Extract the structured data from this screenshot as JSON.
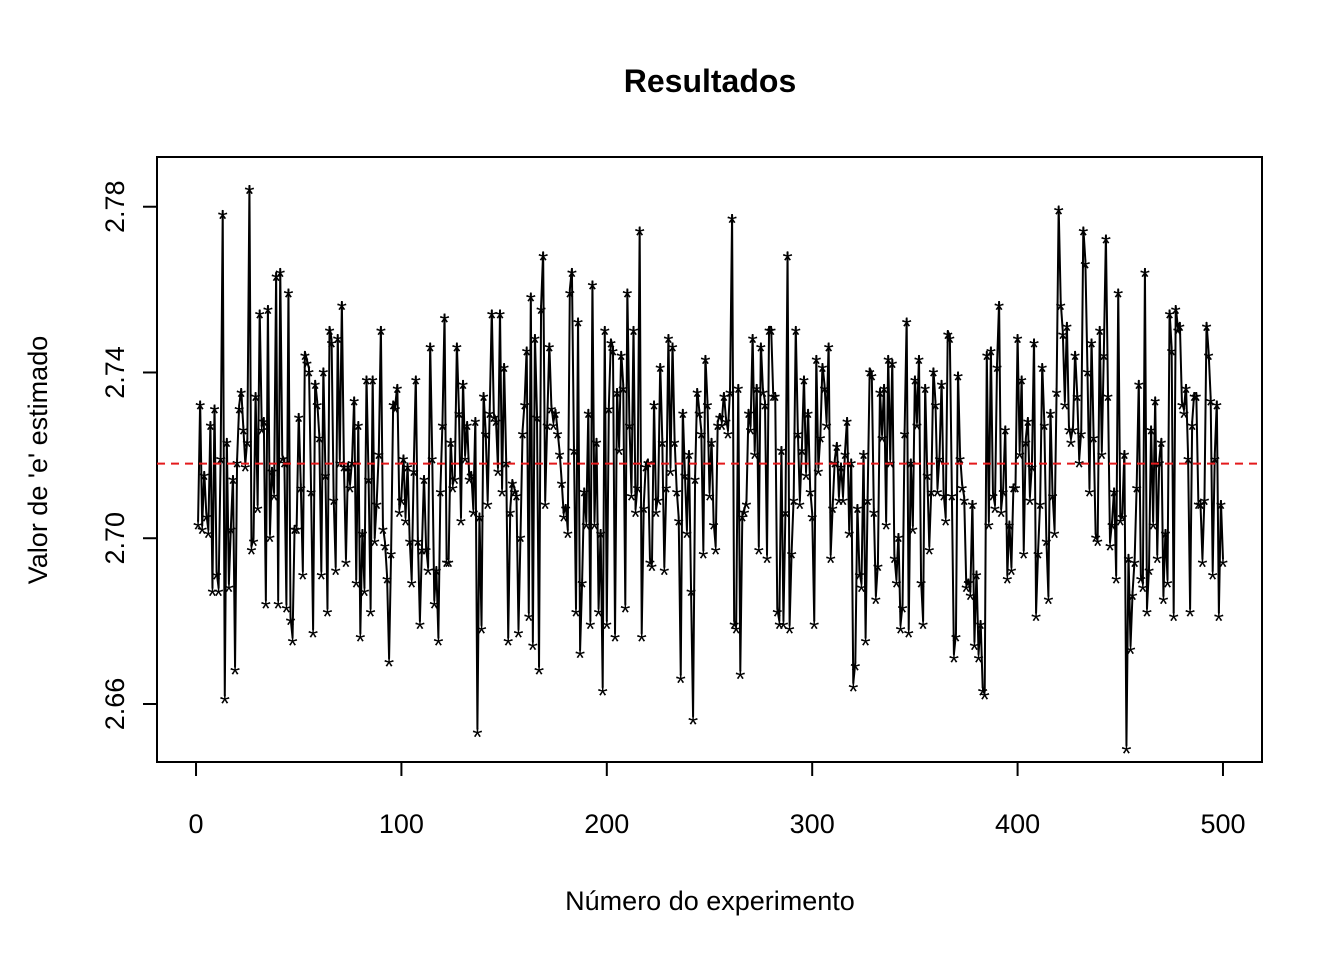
{
  "chart_data": {
    "type": "line",
    "title": "Resultados",
    "x_label": "Número do experimento",
    "y_label": "Valor de 'e' estimado",
    "marker": "*",
    "color": "#000000",
    "hline": 2.718,
    "hline_color": "#e41a1c",
    "xlim": [
      -19,
      519
    ],
    "ylim": [
      2.646,
      2.792
    ],
    "xticks": [
      0,
      100,
      200,
      300,
      400,
      500
    ],
    "yticks": [
      2.66,
      {
        "value": 2.7,
        "label": "2.70"
      },
      2.74,
      2.78
    ],
    "x": [
      1,
      2,
      3,
      4,
      5,
      6,
      7,
      8,
      9,
      10,
      11,
      12,
      13,
      14,
      15,
      16,
      17,
      18,
      19,
      20,
      21,
      22,
      23,
      24,
      25,
      26,
      27,
      28,
      29,
      30,
      31,
      32,
      33,
      34,
      35,
      36,
      37,
      38,
      39,
      40,
      41,
      42,
      43,
      44,
      45,
      46,
      47,
      48,
      49,
      50,
      51,
      52,
      53,
      54,
      55,
      56,
      57,
      58,
      59,
      60,
      61,
      62,
      63,
      64,
      65,
      66,
      67,
      68,
      69,
      70,
      71,
      72,
      73,
      74,
      75,
      76,
      77,
      78,
      79,
      80,
      81,
      82,
      83,
      84,
      85,
      86,
      87,
      88,
      89,
      90,
      91,
      92,
      93,
      94,
      95,
      96,
      97,
      98,
      99,
      100,
      101,
      102,
      103,
      104,
      105,
      106,
      107,
      108,
      109,
      110,
      111,
      112,
      113,
      114,
      115,
      116,
      117,
      118,
      119,
      120,
      121,
      122,
      123,
      124,
      125,
      126,
      127,
      128,
      129,
      130,
      131,
      132,
      133,
      134,
      135,
      136,
      137,
      138,
      139,
      140,
      141,
      142,
      143,
      144,
      145,
      146,
      147,
      148,
      149,
      150,
      151,
      152,
      153,
      154,
      155,
      156,
      157,
      158,
      159,
      160,
      161,
      162,
      163,
      164,
      165,
      166,
      167,
      168,
      169,
      170,
      171,
      172,
      173,
      174,
      175,
      176,
      177,
      178,
      179,
      180,
      181,
      182,
      183,
      184,
      185,
      186,
      187,
      188,
      189,
      190,
      191,
      192,
      193,
      194,
      195,
      196,
      197,
      198,
      199,
      200,
      201,
      202,
      203,
      204,
      205,
      206,
      207,
      208,
      209,
      210,
      211,
      212,
      213,
      214,
      215,
      216,
      217,
      218,
      219,
      220,
      221,
      222,
      223,
      224,
      225,
      226,
      227,
      228,
      229,
      230,
      231,
      232,
      233,
      234,
      235,
      236,
      237,
      238,
      239,
      240,
      241,
      242,
      243,
      244,
      245,
      246,
      247,
      248,
      249,
      250,
      251,
      252,
      253,
      254,
      255,
      256,
      257,
      258,
      259,
      260,
      261,
      262,
      263,
      264,
      265,
      266,
      267,
      268,
      269,
      270,
      271,
      272,
      273,
      274,
      275,
      276,
      277,
      278,
      279,
      280,
      281,
      282,
      283,
      284,
      285,
      286,
      287,
      288,
      289,
      290,
      291,
      292,
      293,
      294,
      295,
      296,
      297,
      298,
      299,
      300,
      301,
      302,
      303,
      304,
      305,
      306,
      307,
      308,
      309,
      310,
      311,
      312,
      313,
      314,
      315,
      316,
      317,
      318,
      319,
      320,
      321,
      322,
      323,
      324,
      325,
      326,
      327,
      328,
      329,
      330,
      331,
      332,
      333,
      334,
      335,
      336,
      337,
      338,
      339,
      340,
      341,
      342,
      343,
      344,
      345,
      346,
      347,
      348,
      349,
      350,
      351,
      352,
      353,
      354,
      355,
      356,
      357,
      358,
      359,
      360,
      361,
      362,
      363,
      364,
      365,
      366,
      367,
      368,
      369,
      370,
      371,
      372,
      373,
      374,
      375,
      376,
      377,
      378,
      379,
      380,
      381,
      382,
      383,
      384,
      385,
      386,
      387,
      388,
      389,
      390,
      391,
      392,
      393,
      394,
      395,
      396,
      397,
      398,
      399,
      400,
      401,
      402,
      403,
      404,
      405,
      406,
      407,
      408,
      409,
      410,
      411,
      412,
      413,
      414,
      415,
      416,
      417,
      418,
      419,
      420,
      421,
      422,
      423,
      424,
      425,
      426,
      427,
      428,
      429,
      430,
      431,
      432,
      433,
      434,
      435,
      436,
      437,
      438,
      439,
      440,
      441,
      442,
      443,
      444,
      445,
      446,
      447,
      448,
      449,
      450,
      451,
      452,
      453,
      454,
      455,
      456,
      457,
      458,
      459,
      460,
      461,
      462,
      463,
      464,
      465,
      466,
      467,
      468,
      469,
      470,
      471,
      472,
      473,
      474,
      475,
      476,
      477,
      478,
      479,
      480,
      481,
      482,
      483,
      484,
      485,
      486,
      487,
      488,
      489,
      490,
      491,
      492,
      493,
      494,
      495,
      496,
      497,
      498,
      499,
      500
    ],
    "values": [
      2.704,
      2.733,
      2.703,
      2.716,
      2.706,
      2.702,
      2.728,
      2.688,
      2.732,
      2.692,
      2.688,
      2.72,
      2.779,
      2.662,
      2.724,
      2.689,
      2.703,
      2.715,
      2.669,
      2.719,
      2.732,
      2.736,
      2.727,
      2.718,
      2.724,
      2.785,
      2.698,
      2.7,
      2.735,
      2.708,
      2.755,
      2.727,
      2.729,
      2.685,
      2.756,
      2.701,
      2.717,
      2.711,
      2.764,
      2.685,
      2.765,
      2.72,
      2.719,
      2.684,
      2.76,
      2.681,
      2.676,
      2.703,
      2.703,
      2.73,
      2.713,
      2.692,
      2.745,
      2.743,
      2.741,
      2.712,
      2.678,
      2.738,
      2.733,
      2.725,
      2.692,
      2.741,
      2.716,
      2.683,
      2.751,
      2.748,
      2.71,
      2.693,
      2.749,
      2.719,
      2.757,
      2.718,
      2.695,
      2.718,
      2.713,
      2.719,
      2.734,
      2.69,
      2.728,
      2.677,
      2.702,
      2.688,
      2.739,
      2.715,
      2.683,
      2.739,
      2.7,
      2.709,
      2.721,
      2.751,
      2.703,
      2.699,
      2.691,
      2.671,
      2.697,
      2.733,
      2.732,
      2.737,
      2.707,
      2.71,
      2.72,
      2.705,
      2.718,
      2.7,
      2.69,
      2.717,
      2.739,
      2.7,
      2.68,
      2.698,
      2.715,
      2.698,
      2.693,
      2.747,
      2.72,
      2.685,
      2.693,
      2.676,
      2.712,
      2.728,
      2.754,
      2.695,
      2.695,
      2.724,
      2.713,
      2.715,
      2.747,
      2.731,
      2.705,
      2.738,
      2.72,
      2.728,
      2.715,
      2.716,
      2.707,
      2.729,
      2.654,
      2.706,
      2.679,
      2.735,
      2.726,
      2.709,
      2.731,
      2.755,
      2.73,
      2.729,
      2.717,
      2.755,
      2.712,
      2.742,
      2.719,
      2.676,
      2.707,
      2.714,
      2.712,
      2.711,
      2.678,
      2.701,
      2.726,
      2.733,
      2.746,
      2.682,
      2.759,
      2.675,
      2.749,
      2.73,
      2.669,
      2.756,
      2.769,
      2.709,
      2.728,
      2.747,
      2.732,
      2.728,
      2.731,
      2.726,
      2.721,
      2.714,
      2.706,
      2.708,
      2.702,
      2.76,
      2.765,
      2.722,
      2.683,
      2.753,
      2.673,
      2.69,
      2.712,
      2.704,
      2.731,
      2.68,
      2.762,
      2.704,
      2.724,
      2.683,
      2.702,
      2.664,
      2.751,
      2.68,
      2.732,
      2.748,
      2.746,
      2.677,
      2.736,
      2.722,
      2.745,
      2.737,
      2.684,
      2.76,
      2.728,
      2.711,
      2.751,
      2.707,
      2.713,
      2.775,
      2.677,
      2.708,
      2.718,
      2.719,
      2.695,
      2.694,
      2.733,
      2.707,
      2.71,
      2.742,
      2.724,
      2.693,
      2.713,
      2.749,
      2.717,
      2.747,
      2.724,
      2.712,
      2.705,
      2.667,
      2.731,
      2.716,
      2.702,
      2.721,
      2.688,
      2.657,
      2.715,
      2.736,
      2.731,
      2.726,
      2.697,
      2.744,
      2.733,
      2.711,
      2.724,
      2.704,
      2.698,
      2.728,
      2.73,
      2.728,
      2.735,
      2.729,
      2.726,
      2.736,
      2.778,
      2.68,
      2.679,
      2.737,
      2.668,
      2.706,
      2.707,
      2.709,
      2.731,
      2.727,
      2.749,
      2.721,
      2.737,
      2.698,
      2.747,
      2.736,
      2.733,
      2.696,
      2.751,
      2.751,
      2.735,
      2.735,
      2.683,
      2.68,
      2.722,
      2.68,
      2.707,
      2.769,
      2.679,
      2.697,
      2.71,
      2.751,
      2.726,
      2.709,
      2.722,
      2.739,
      2.716,
      2.731,
      2.712,
      2.706,
      2.68,
      2.744,
      2.717,
      2.725,
      2.742,
      2.737,
      2.728,
      2.747,
      2.696,
      2.708,
      2.719,
      2.723,
      2.71,
      2.718,
      2.71,
      2.721,
      2.729,
      2.702,
      2.719,
      2.665,
      2.67,
      2.708,
      2.692,
      2.689,
      2.721,
      2.676,
      2.71,
      2.741,
      2.74,
      2.707,
      2.686,
      2.694,
      2.736,
      2.725,
      2.737,
      2.704,
      2.744,
      2.719,
      2.743,
      2.696,
      2.69,
      2.701,
      2.679,
      2.684,
      2.726,
      2.753,
      2.678,
      2.719,
      2.703,
      2.739,
      2.728,
      2.744,
      2.69,
      2.68,
      2.737,
      2.716,
      2.698,
      2.712,
      2.741,
      2.733,
      2.712,
      2.72,
      2.738,
      2.711,
      2.705,
      2.75,
      2.749,
      2.711,
      2.672,
      2.677,
      2.74,
      2.72,
      2.713,
      2.71,
      2.689,
      2.69,
      2.687,
      2.709,
      2.675,
      2.692,
      2.672,
      2.68,
      2.664,
      2.663,
      2.745,
      2.704,
      2.746,
      2.711,
      2.708,
      2.742,
      2.757,
      2.707,
      2.712,
      2.727,
      2.691,
      2.704,
      2.693,
      2.713,
      2.713,
      2.749,
      2.721,
      2.739,
      2.697,
      2.724,
      2.729,
      2.71,
      2.718,
      2.748,
      2.682,
      2.697,
      2.709,
      2.742,
      2.728,
      2.7,
      2.686,
      2.731,
      2.711,
      2.702,
      2.736,
      2.78,
      2.757,
      2.75,
      2.733,
      2.752,
      2.727,
      2.724,
      2.727,
      2.745,
      2.735,
      2.719,
      2.726,
      2.775,
      2.767,
      2.741,
      2.712,
      2.748,
      2.725,
      2.701,
      2.7,
      2.751,
      2.721,
      2.745,
      2.773,
      2.735,
      2.699,
      2.704,
      2.712,
      2.691,
      2.76,
      2.705,
      2.706,
      2.721,
      2.65,
      2.696,
      2.674,
      2.687,
      2.695,
      2.713,
      2.738,
      2.691,
      2.689,
      2.765,
      2.683,
      2.693,
      2.727,
      2.704,
      2.734,
      2.696,
      2.719,
      2.724,
      2.686,
      2.702,
      2.69,
      2.755,
      2.746,
      2.682,
      2.756,
      2.751,
      2.752,
      2.733,
      2.731,
      2.737,
      2.72,
      2.683,
      2.728,
      2.735,
      2.735,
      2.709,
      2.709,
      2.695,
      2.71,
      2.752,
      2.745,
      2.734,
      2.692,
      2.72,
      2.733,
      2.682,
      2.709,
      2.695
    ]
  }
}
